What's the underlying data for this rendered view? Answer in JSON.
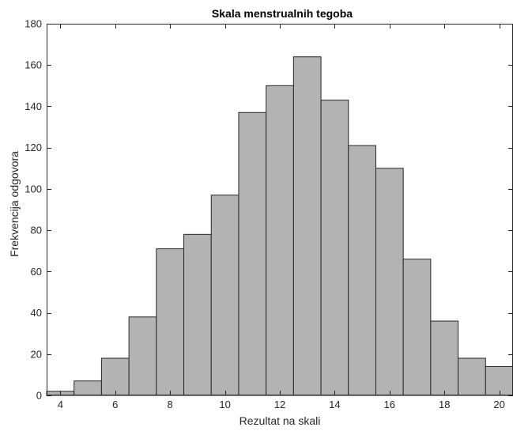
{
  "chart_data": {
    "type": "bar",
    "title": "Skala menstrualnih tegoba",
    "xlabel": "Rezultat na skali",
    "ylabel": "Frekvencija odgovora",
    "xlim": [
      3.5,
      20.5
    ],
    "ylim": [
      0,
      180
    ],
    "xticks": [
      4,
      6,
      8,
      10,
      12,
      14,
      16,
      18,
      20
    ],
    "yticks": [
      0,
      20,
      40,
      60,
      80,
      100,
      120,
      140,
      160,
      180
    ],
    "grid": false,
    "bar_color": "#b3b3b3",
    "edge_color": "#262626",
    "bins": [
      {
        "from": 3.5,
        "to": 4.5,
        "value": 2
      },
      {
        "from": 4.5,
        "to": 5.5,
        "value": 7
      },
      {
        "from": 5.5,
        "to": 6.5,
        "value": 18
      },
      {
        "from": 6.5,
        "to": 7.5,
        "value": 38
      },
      {
        "from": 7.5,
        "to": 8.5,
        "value": 71
      },
      {
        "from": 8.5,
        "to": 9.5,
        "value": 78
      },
      {
        "from": 9.5,
        "to": 10.5,
        "value": 97
      },
      {
        "from": 10.5,
        "to": 11.5,
        "value": 137
      },
      {
        "from": 11.5,
        "to": 12.5,
        "value": 150
      },
      {
        "from": 12.5,
        "to": 13.5,
        "value": 164
      },
      {
        "from": 13.5,
        "to": 14.5,
        "value": 143
      },
      {
        "from": 14.5,
        "to": 15.5,
        "value": 121
      },
      {
        "from": 15.5,
        "to": 16.5,
        "value": 110
      },
      {
        "from": 16.5,
        "to": 17.5,
        "value": 66
      },
      {
        "from": 17.5,
        "to": 18.5,
        "value": 36
      },
      {
        "from": 18.5,
        "to": 19.5,
        "value": 18
      },
      {
        "from": 19.5,
        "to": 20.5,
        "value": 14
      }
    ]
  }
}
